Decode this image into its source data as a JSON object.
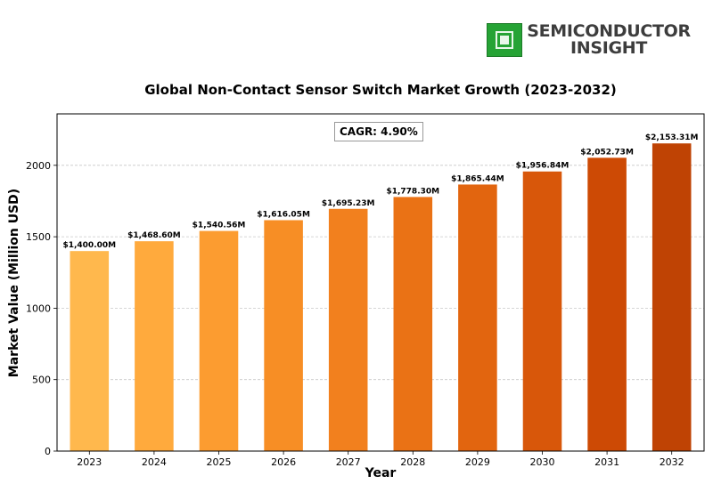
{
  "brand": {
    "logo_line1": "SEMICONDUCTOR",
    "logo_line2": "INSIGHT",
    "logo_color": "#26a335"
  },
  "chart_data": {
    "type": "bar",
    "title": "Global Non-Contact Sensor Switch Market Growth (2023-2032)",
    "xlabel": "Year",
    "ylabel": "Market Value (Million USD)",
    "categories": [
      "2023",
      "2024",
      "2025",
      "2026",
      "2027",
      "2028",
      "2029",
      "2030",
      "2031",
      "2032"
    ],
    "values": [
      1400.0,
      1468.6,
      1540.56,
      1616.05,
      1695.23,
      1778.3,
      1865.44,
      1956.84,
      2052.73,
      2153.31
    ],
    "data_labels": [
      "$1,400.00M",
      "$1,468.60M",
      "$1,540.56M",
      "$1,616.05M",
      "$1,695.23M",
      "$1,778.30M",
      "$1,865.44M",
      "$1,956.84M",
      "$2,052.73M",
      "$2,153.31M"
    ],
    "bar_colors": [
      "#ffb84d",
      "#ffaa3d",
      "#fc9c30",
      "#f78e25",
      "#f2801e",
      "#ea7215",
      "#e2650f",
      "#d8570a",
      "#cd4a05",
      "#bf4304"
    ],
    "yticks": [
      0,
      500,
      1000,
      1500,
      2000
    ],
    "ylim": [
      0,
      2360
    ],
    "grid": "y-dashed",
    "annotation": "CAGR: 4.90%"
  }
}
